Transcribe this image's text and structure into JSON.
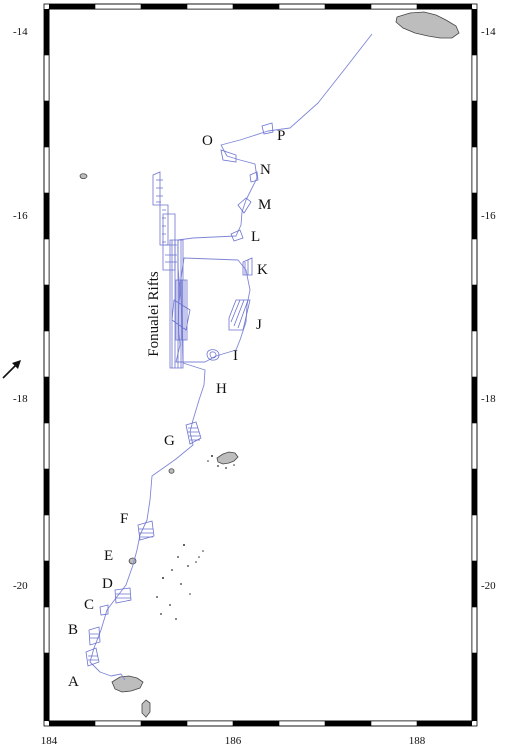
{
  "map": {
    "area_label": "Fonualei Rifts",
    "lon_ticks": [
      "184",
      "186",
      "188"
    ],
    "lat_ticks": [
      "-14",
      "-16",
      "-18",
      "-20"
    ],
    "sites": [
      "A",
      "B",
      "C",
      "D",
      "E",
      "F",
      "G",
      "H",
      "I",
      "J",
      "K",
      "L",
      "M",
      "N",
      "O",
      "P"
    ],
    "colors": {
      "track": "#7f86d6",
      "land": "#bdbdbd",
      "frame_dark": "#000000",
      "frame_light": "#ffffff"
    }
  }
}
